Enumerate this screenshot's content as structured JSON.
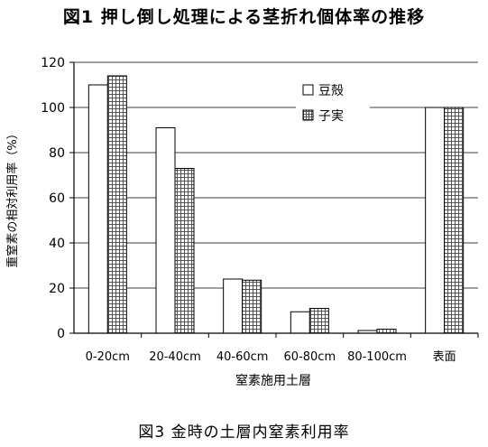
{
  "header": {
    "title": "図1 押し倒し処理による茎折れ個体率の推移"
  },
  "footer": {
    "caption": "図3 金時の土層内窒素利用率"
  },
  "chart_data": {
    "type": "bar",
    "categories": [
      "0-20cm",
      "20-40cm",
      "40-60cm",
      "60-80cm",
      "80-100cm",
      "表面"
    ],
    "series": [
      {
        "name": "豆殻",
        "values": [
          110,
          91,
          24,
          9.5,
          1.2,
          100
        ],
        "pattern": "solid-white"
      },
      {
        "name": "子実",
        "values": [
          114,
          73,
          23.5,
          11,
          1.8,
          100
        ],
        "pattern": "grid-hatch"
      }
    ],
    "title": "",
    "xlabel": "窒素施用土層",
    "ylabel": "重窒素の相対利用率（%）",
    "ylim": [
      0,
      120
    ],
    "yticks": [
      0,
      20,
      40,
      60,
      80,
      100,
      120
    ],
    "grid": true,
    "legend_position": "top-right",
    "colors": {
      "bar_fill": "#ffffff",
      "bar_stroke": "#000000",
      "hatch": "#555555",
      "gridline": "#000000"
    }
  }
}
